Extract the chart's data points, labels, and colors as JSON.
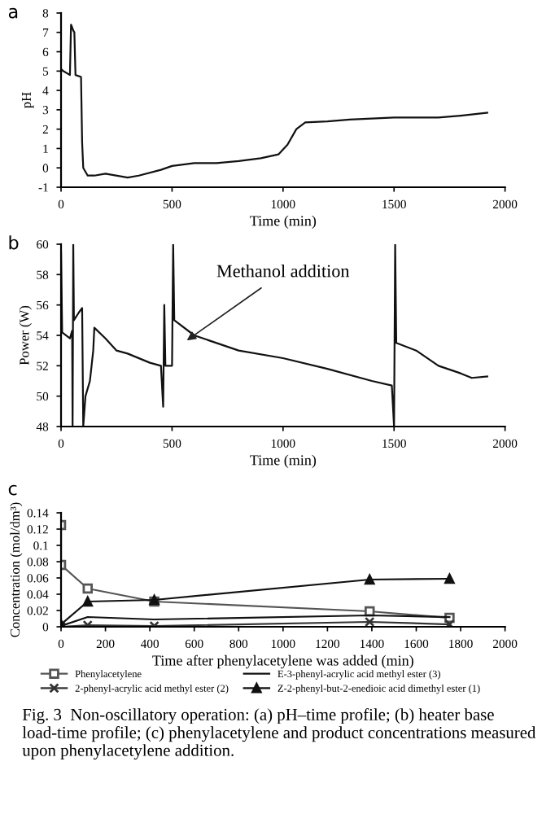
{
  "chart_data": [
    {
      "type": "line",
      "title": "a",
      "xlabel": "Time (min)",
      "ylabel": "pH",
      "xlim": [
        0,
        2000
      ],
      "xticks": [
        0,
        500,
        1000,
        1500,
        2000
      ],
      "ylim": [
        -1,
        8
      ],
      "yticks": [
        -1,
        0,
        1,
        2,
        3,
        4,
        5,
        6,
        7,
        8
      ],
      "grid": false,
      "legend": false,
      "series": [
        {
          "color": "#111111",
          "x": [
            0,
            10,
            40,
            45,
            55,
            60,
            65,
            90,
            95,
            100,
            120,
            150,
            200,
            300,
            350,
            450,
            500,
            600,
            700,
            800,
            900,
            980,
            1020,
            1060,
            1100,
            1200,
            1300,
            1500,
            1700,
            1800,
            1920
          ],
          "values": [
            5.1,
            5.0,
            4.8,
            7.4,
            7.1,
            7.0,
            4.8,
            4.7,
            1.3,
            0.0,
            -0.4,
            -0.4,
            -0.3,
            -0.5,
            -0.4,
            -0.1,
            0.1,
            0.25,
            0.25,
            0.35,
            0.5,
            0.7,
            1.2,
            2.0,
            2.35,
            2.4,
            2.5,
            2.6,
            2.6,
            2.7,
            2.85
          ]
        }
      ]
    },
    {
      "type": "line",
      "title": "b",
      "xlabel": "Time (min)",
      "ylabel": "Power (W)",
      "xlim": [
        0,
        2000
      ],
      "xticks": [
        0,
        500,
        1000,
        1500,
        2000
      ],
      "ylim": [
        48,
        60
      ],
      "yticks": [
        48,
        50,
        52,
        54,
        56,
        58,
        60
      ],
      "grid": false,
      "legend": false,
      "annotations": [
        {
          "text": "Methanol addition",
          "x": 550,
          "y": 53.5
        }
      ],
      "series": [
        {
          "color": "#111111",
          "x": [
            0,
            5,
            40,
            50,
            52,
            55,
            58,
            80,
            95,
            100,
            110,
            130,
            145,
            150,
            200,
            250,
            300,
            400,
            450,
            460,
            465,
            470,
            500,
            505,
            510,
            600,
            800,
            1000,
            1200,
            1400,
            1490,
            1500,
            1505,
            1510,
            1600,
            1700,
            1800,
            1850,
            1920
          ],
          "values": [
            59.5,
            54.2,
            53.8,
            54.3,
            48,
            60,
            55,
            55.5,
            55.8,
            48,
            50,
            51,
            53,
            54.5,
            53.8,
            53,
            52.8,
            52.2,
            52,
            49.3,
            56,
            52,
            52,
            60,
            55,
            54,
            53,
            52.5,
            51.8,
            51,
            50.7,
            48,
            60,
            53.5,
            53,
            52,
            51.5,
            51.2,
            51.3
          ]
        }
      ]
    },
    {
      "type": "line",
      "title": "c",
      "xlabel": "Time after phenylacetylene was added (min)",
      "ylabel": "Concentration (mol/dm³)",
      "xlim": [
        0,
        2000
      ],
      "xticks": [
        0,
        200,
        400,
        600,
        800,
        1000,
        1200,
        1400,
        1600,
        1800,
        2000
      ],
      "ylim": [
        0,
        0.14
      ],
      "yticks": [
        0,
        0.02,
        0.04,
        0.06,
        0.08,
        0.1,
        0.12,
        0.14
      ],
      "grid": false,
      "legend": "bottom",
      "annotations": [
        "Fig. 3  Non-oscillatory operation: (a) pH–time profile; (b) heater base load-time profile; (c) phenylacetylene and product concentrations measured upon phenylacetylene addition."
      ],
      "series": [
        {
          "name": "Phenylacetylene",
          "color": "#555555",
          "marker": "square",
          "x": [
            0,
            0,
            120,
            420,
            1390,
            1750
          ],
          "values": [
            0.125,
            0.076,
            0.047,
            0.031,
            0.019,
            0.011
          ]
        },
        {
          "name": "2-phenyl-acrylic acid methyl ester (2)",
          "color": "#333333",
          "marker": "cross",
          "x": [
            0,
            120,
            420,
            1390,
            1750
          ],
          "values": [
            0,
            0.002,
            0.001,
            0.006,
            0.003
          ]
        },
        {
          "name": "E-3-phenyl-acrylic acid methyl ester (3)",
          "color": "#111111",
          "marker": "none",
          "x": [
            0,
            120,
            420,
            1390,
            1750
          ],
          "values": [
            0.001,
            0.012,
            0.009,
            0.014,
            0.012
          ]
        },
        {
          "name": "Z-2-phenyl-but-2-enedioic acid dimethyl ester (1)",
          "color": "#111111",
          "marker": "triangle",
          "x": [
            0,
            120,
            420,
            1390,
            1750
          ],
          "values": [
            0.003,
            0.031,
            0.033,
            0.058,
            0.059
          ]
        }
      ]
    }
  ]
}
